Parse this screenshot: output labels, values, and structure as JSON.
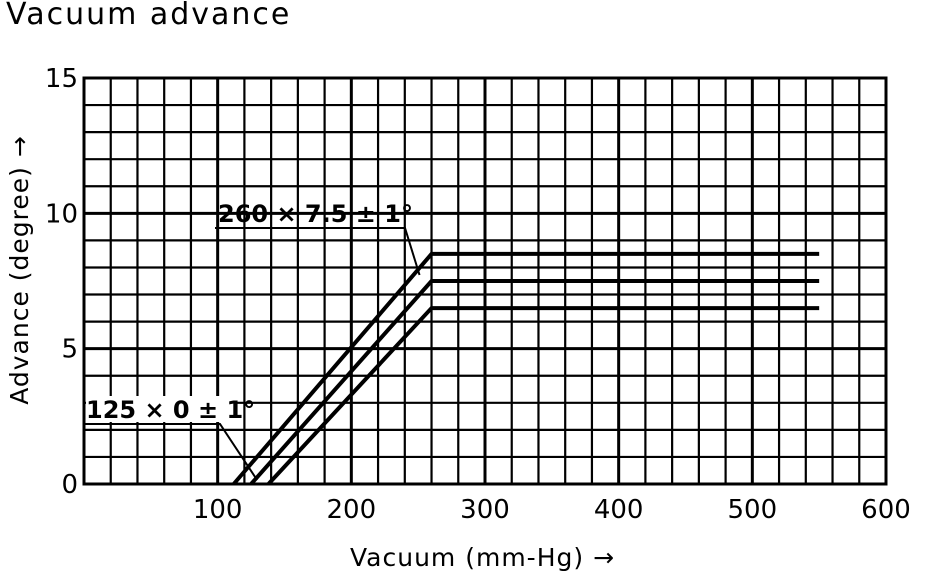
{
  "chart_data": {
    "type": "line",
    "title": "Vacuum advance",
    "xlabel": "Vacuum (mm-Hg) →",
    "ylabel": "Advance (degree) →",
    "xlim": [
      0,
      600
    ],
    "ylim": [
      0,
      15
    ],
    "x_ticks": [
      "100",
      "200",
      "300",
      "400",
      "500",
      "600"
    ],
    "y_ticks": [
      "0",
      "5",
      "10",
      "15"
    ],
    "grid": true,
    "series": [
      {
        "x": [
          112,
          260,
          550
        ],
        "y": [
          0,
          8.5,
          8.5
        ]
      },
      {
        "x": [
          125,
          260,
          550
        ],
        "y": [
          0,
          7.5,
          7.5
        ]
      },
      {
        "x": [
          138,
          260,
          550
        ],
        "y": [
          0,
          6.5,
          6.5
        ]
      }
    ],
    "annotations": [
      {
        "text": "260 × 7.5 ± 1°",
        "x": 260,
        "y": 7.5
      },
      {
        "text": "125 × 0 ± 1°",
        "x": 125,
        "y": 0
      }
    ]
  }
}
